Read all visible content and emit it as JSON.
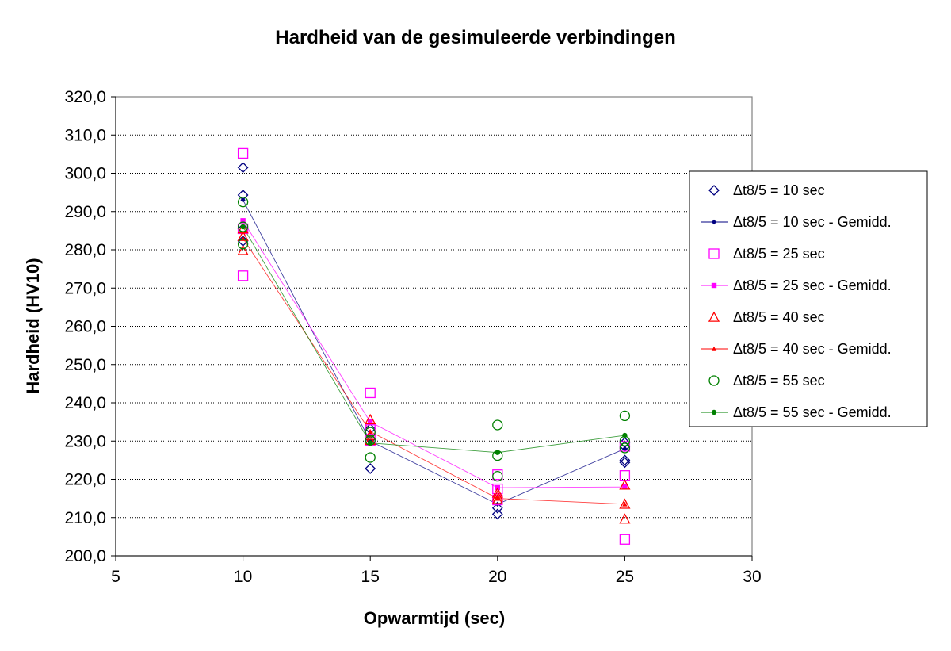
{
  "chart_data": {
    "type": "scatter",
    "title": "Hardheid van de gesimuleerde verbindingen",
    "xlabel": "Opwarmtijd (sec)",
    "ylabel": "Hardheid (HV10)",
    "xlim": [
      5,
      30
    ],
    "ylim": [
      200,
      320
    ],
    "x_ticks": [
      "5",
      "10",
      "15",
      "20",
      "25",
      "30"
    ],
    "y_ticks": [
      "200,0",
      "210,0",
      "220,0",
      "230,0",
      "240,0",
      "250,0",
      "260,0",
      "270,0",
      "280,0",
      "290,0",
      "300,0",
      "310,0",
      "320,0"
    ],
    "grid": "horizontal dotted",
    "legend_position": "right",
    "series": [
      {
        "name": "Δt8/5 = 10 sec",
        "kind": "points",
        "marker": "diamond-open",
        "color": "#000080",
        "points": [
          [
            10,
            301.5
          ],
          [
            10,
            294.3
          ],
          [
            10,
            285.5
          ],
          [
            10,
            282.3
          ],
          [
            15,
            222.8
          ],
          [
            15,
            230.6
          ],
          [
            15,
            233.2
          ],
          [
            20,
            210.9
          ],
          [
            20,
            212.5
          ],
          [
            25,
            224.4
          ],
          [
            25,
            225.0
          ],
          [
            25,
            228.6
          ],
          [
            25,
            229.6
          ]
        ]
      },
      {
        "name": "Δt8/5 = 10 sec - Gemidd.",
        "kind": "line",
        "marker": "diamond-filled",
        "color": "#000080",
        "points": [
          [
            10,
            293.0
          ],
          [
            15,
            230.0
          ],
          [
            20,
            213.5
          ],
          [
            25,
            228.0
          ]
        ]
      },
      {
        "name": "Δt8/5 = 25 sec",
        "kind": "points",
        "marker": "square-open",
        "color": "#ff00ff",
        "points": [
          [
            10,
            305.2
          ],
          [
            10,
            285.5
          ],
          [
            10,
            273.2
          ],
          [
            15,
            242.6
          ],
          [
            15,
            233.0
          ],
          [
            15,
            230.2
          ],
          [
            20,
            221.2
          ],
          [
            20,
            217.5
          ],
          [
            20,
            214.6
          ],
          [
            25,
            228.6
          ],
          [
            25,
            221.0
          ],
          [
            25,
            204.3
          ]
        ]
      },
      {
        "name": "Δt8/5 = 25 sec - Gemidd.",
        "kind": "line",
        "marker": "square-filled",
        "color": "#ff00ff",
        "points": [
          [
            10,
            287.6
          ],
          [
            15,
            235.0
          ],
          [
            20,
            217.8
          ],
          [
            25,
            218.0
          ]
        ]
      },
      {
        "name": "Δt8/5 = 40 sec",
        "kind": "points",
        "marker": "triangle-open",
        "color": "#ff0000",
        "points": [
          [
            10,
            279.8
          ],
          [
            10,
            283.5
          ],
          [
            10,
            285.5
          ],
          [
            15,
            235.6
          ],
          [
            15,
            231.5
          ],
          [
            15,
            230.2
          ],
          [
            20,
            216.4
          ],
          [
            20,
            215.6
          ],
          [
            20,
            214.7
          ],
          [
            25,
            218.5
          ],
          [
            25,
            213.5
          ],
          [
            25,
            209.6
          ]
        ]
      },
      {
        "name": "Δt8/5 = 40 sec - Gemidd.",
        "kind": "line",
        "marker": "triangle-filled",
        "color": "#ff0000",
        "points": [
          [
            10,
            283.0
          ],
          [
            15,
            232.5
          ],
          [
            20,
            215.0
          ],
          [
            25,
            213.5
          ]
        ]
      },
      {
        "name": "Δt8/5 = 55 sec",
        "kind": "points",
        "marker": "circle-open",
        "color": "#008000",
        "points": [
          [
            10,
            292.5
          ],
          [
            10,
            286.0
          ],
          [
            10,
            281.5
          ],
          [
            15,
            225.7
          ],
          [
            15,
            230.2
          ],
          [
            15,
            232.3
          ],
          [
            20,
            234.2
          ],
          [
            20,
            226.2
          ],
          [
            20,
            220.8
          ],
          [
            25,
            236.6
          ],
          [
            25,
            230.0
          ],
          [
            25,
            228.2
          ]
        ]
      },
      {
        "name": "Δt8/5 = 55 sec - Gemidd.",
        "kind": "line",
        "marker": "circle-filled",
        "color": "#008000",
        "points": [
          [
            10,
            286.0
          ],
          [
            15,
            229.5
          ],
          [
            20,
            227.0
          ],
          [
            25,
            231.5
          ]
        ]
      }
    ]
  }
}
